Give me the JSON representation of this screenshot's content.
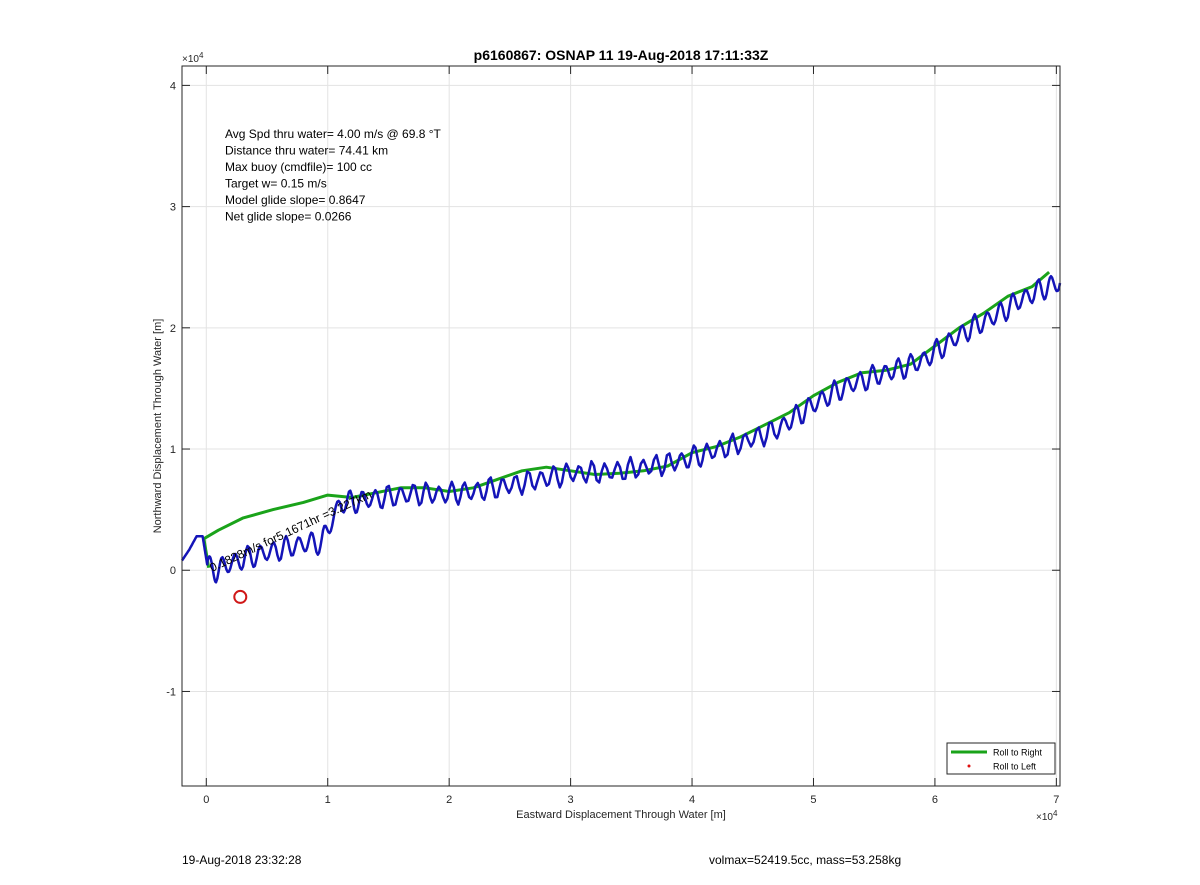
{
  "chart_data": {
    "type": "line",
    "title": "p6160867: OSNAP 11 19-Aug-2018 17:11:33Z",
    "xlabel": "Eastward Displacement Through Water [m]",
    "ylabel": "Northward Displacement Through Water [m]",
    "x_multiplier": "×10",
    "y_multiplier": "×10",
    "multiplier_exponent": "4",
    "xlim": [
      -2000,
      70300
    ],
    "ylim": [
      -17800,
      41600
    ],
    "xticks": [
      0,
      10000,
      20000,
      30000,
      40000,
      50000,
      60000,
      70000
    ],
    "xtick_labels": [
      "0",
      "1",
      "2",
      "3",
      "4",
      "5",
      "6",
      "7"
    ],
    "yticks": [
      -10000,
      0,
      10000,
      20000,
      30000,
      40000
    ],
    "ytick_labels": [
      "-1",
      "0",
      "1",
      "2",
      "3",
      "4"
    ],
    "grid": true,
    "legend_position": "bottom-right",
    "legend": [
      {
        "label": "Roll to Right",
        "color": "#1aa31a",
        "style": "line"
      },
      {
        "label": "Roll to Left",
        "color": "#e01010",
        "style": "dot"
      }
    ],
    "annotation_lines": [
      "Avg Spd thru water=  4.00 m/s @  69.8 °T",
      "Distance thru water= 74.41 km",
      "Max buoy (cmdfile)= 100 cc",
      "Target w= 0.15 m/s",
      "Model glide slope= 0.8647",
      "Net glide slope= 0.0266"
    ],
    "rotated_annotation": "0.1828m/s for5.1671hr =3.227km",
    "series": [
      {
        "color": "#1aa31a",
        "width": 3,
        "x": [
          -200,
          1000,
          3000,
          5500,
          8000,
          10000,
          12000,
          14000,
          16000,
          18000,
          20000,
          22000,
          24000,
          26000,
          28000,
          30000,
          32000,
          34000,
          36000,
          38000,
          40000,
          42000,
          44000,
          46000,
          48000,
          50000,
          52000,
          54000,
          56000,
          58000,
          60000,
          62000,
          64000,
          66000,
          68000,
          69400
        ],
        "y": [
          2600,
          3300,
          4300,
          5000,
          5600,
          6200,
          6000,
          6400,
          6800,
          6800,
          6500,
          6800,
          7500,
          8200,
          8500,
          8200,
          7900,
          8000,
          8200,
          8600,
          9700,
          10200,
          11000,
          12000,
          13000,
          14400,
          15500,
          16300,
          16500,
          17000,
          18500,
          20000,
          21200,
          22600,
          23400,
          24600
        ]
      },
      {
        "color": "#1aa31a",
        "width": 3,
        "x": [
          -200,
          200
        ],
        "y": [
          2600,
          200
        ]
      },
      {
        "color": "#1414b8",
        "width": 2.5,
        "x": [
          -2000,
          -1400,
          -800,
          -300,
          100,
          800,
          2300,
          4000,
          6000,
          8000,
          9500,
          11000,
          12500,
          14500,
          17000,
          19500,
          22000,
          24500,
          27500,
          30000,
          33000,
          36000,
          39000,
          41000,
          44000,
          47000,
          49000,
          51000,
          53000,
          55000,
          57000,
          59000,
          61000,
          63000,
          65000,
          67000,
          69000,
          70300
        ],
        "y": [
          800,
          1700,
          2800,
          2800,
          300,
          0,
          700,
          1200,
          1700,
          2200,
          2300,
          5500,
          5700,
          6000,
          6300,
          6300,
          6500,
          6900,
          7500,
          8000,
          8100,
          8500,
          9000,
          9600,
          10500,
          11600,
          13000,
          14300,
          15300,
          16000,
          16600,
          17300,
          18700,
          20000,
          21000,
          22300,
          23300,
          23700
        ]
      }
    ],
    "wiggle_amplitude": 800,
    "wiggle_period": 1050,
    "marker": {
      "x": 2800,
      "y": -2200,
      "color": "#d01818"
    },
    "footer_left": "19-Aug-2018 23:32:28",
    "footer_right": "volmax=52419.5cc, mass=53.258kg"
  }
}
